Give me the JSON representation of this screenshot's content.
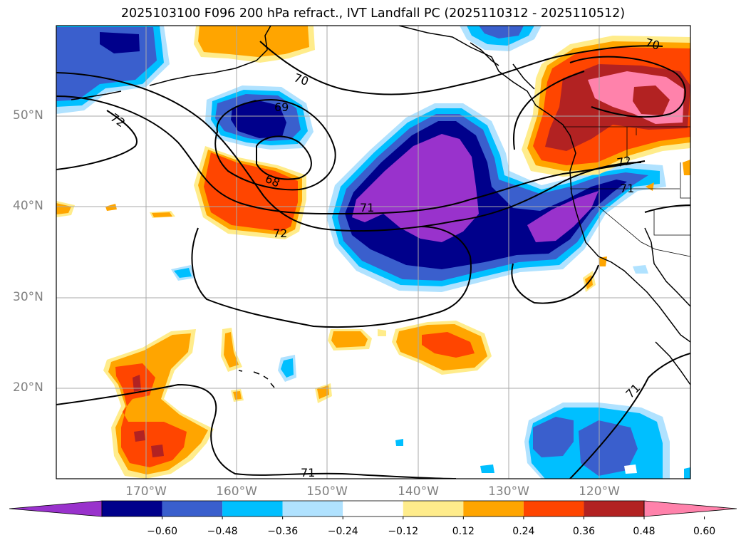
{
  "title": "2025103100 F096 200 hPa refract., IVT Landfall PC (2025110312 - 2025110512)",
  "axes": {
    "lat_labels": [
      "50°N",
      "40°N",
      "30°N",
      "20°N"
    ],
    "lon_labels": [
      "170°W",
      "160°W",
      "150°W",
      "140°W",
      "130°W",
      "120°W"
    ]
  },
  "contour_labels": [
    "70",
    "69",
    "72",
    "68",
    "71",
    "72",
    "70",
    "72",
    "71",
    "71",
    "71"
  ],
  "colorbar": {
    "ticks": [
      "−0.60",
      "−0.48",
      "−0.36",
      "−0.24",
      "−0.12",
      "0.12",
      "0.24",
      "0.36",
      "0.48",
      "0.60"
    ],
    "colors": [
      "#9932cc",
      "#00008b",
      "#3a5fcd",
      "#00bfff",
      "#b0e2ff",
      "#ffffff",
      "#ffec8b",
      "#ffa500",
      "#ff4500",
      "#b22222",
      "#ff82ab"
    ]
  },
  "shading_colors": {
    "purple": "#9932cc",
    "navy": "#00008b",
    "royal": "#3a5fcd",
    "sky": "#00bfff",
    "lightblue": "#b0e2ff",
    "yellow": "#ffec8b",
    "orange": "#ffa500",
    "redorange": "#ff4500",
    "firebrick": "#b22222",
    "pink": "#ff82ab"
  }
}
